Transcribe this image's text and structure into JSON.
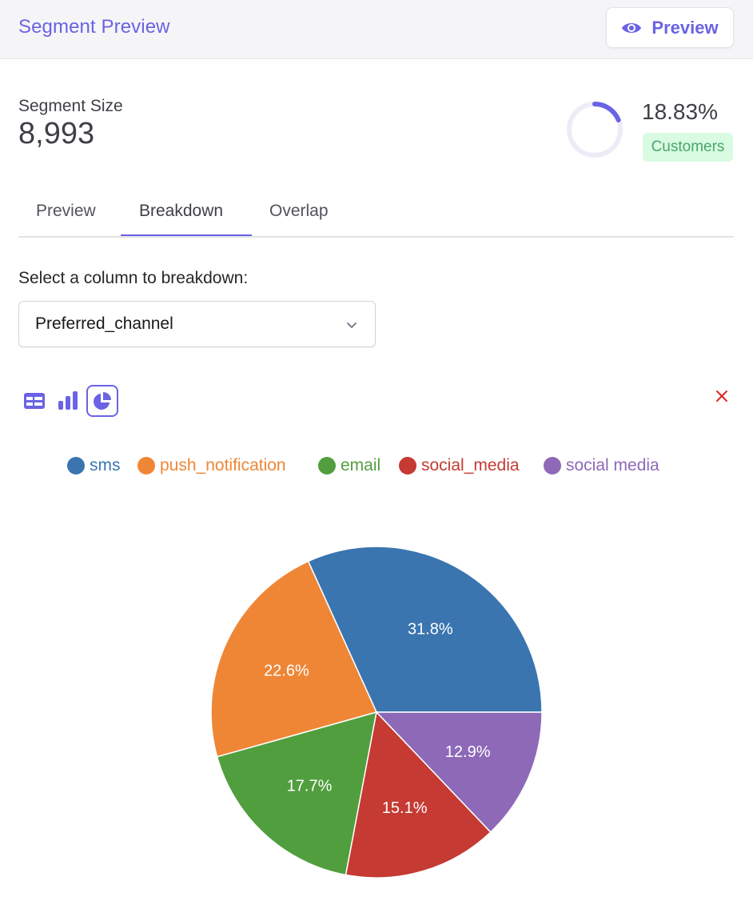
{
  "header": {
    "title": "Segment Preview",
    "preview_button": "Preview"
  },
  "segment": {
    "size_label": "Segment Size",
    "size_value": "8,993",
    "percent_label": "18.83%",
    "percent_value": 18.83,
    "badge": "Customers"
  },
  "tabs": [
    {
      "label": "Preview",
      "active": false
    },
    {
      "label": "Breakdown",
      "active": true
    },
    {
      "label": "Overlap",
      "active": false
    }
  ],
  "breakdown": {
    "select_label": "Select a column to breakdown:",
    "selected_column": "Preferred_channel"
  },
  "view_toggles": {
    "icons": [
      "table-icon",
      "bar-chart-icon",
      "pie-chart-icon"
    ],
    "active": "pie-chart-icon"
  },
  "colors": {
    "accent": "#6a63e3",
    "close": "#dc2626"
  },
  "chart_data": {
    "type": "pie",
    "categories": [
      "sms",
      "push_notification",
      "email",
      "social_media",
      "social media"
    ],
    "values": [
      31.8,
      22.6,
      17.7,
      15.1,
      12.9
    ],
    "labels": [
      "31.8%",
      "22.6%",
      "17.7%",
      "15.1%",
      "12.9%"
    ],
    "colors": [
      "#3a75b0",
      "#ef8636",
      "#519e3e",
      "#c53a32",
      "#8d69b8"
    ],
    "legend_position": "top",
    "start_angle_deg": 0,
    "direction": "counterclockwise"
  }
}
